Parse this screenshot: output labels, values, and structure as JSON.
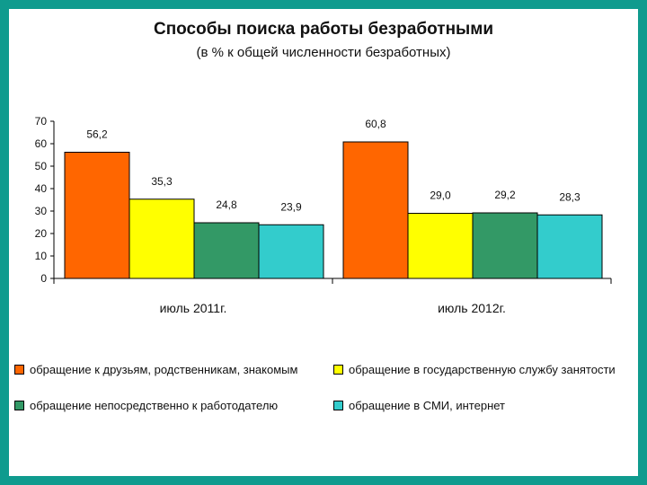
{
  "chart_data": {
    "type": "bar",
    "title": "Способы поиска работы безработными",
    "subtitle": "(в % к общей численности безработных)",
    "categories": [
      "июль 2011г.",
      "июль 2012г."
    ],
    "ylim": [
      0,
      70
    ],
    "yticks": [
      0,
      10,
      20,
      30,
      40,
      50,
      60,
      70
    ],
    "grid": false,
    "legend_position": "bottom",
    "series": [
      {
        "name": "обращение к друзьям, родственникам, знакомым",
        "color": "#ff6600",
        "values": [
          56.2,
          60.8
        ],
        "labels": [
          "56,2",
          "60,8"
        ]
      },
      {
        "name": "обращение в государственную службу занятости",
        "color": "#ffff00",
        "values": [
          35.3,
          29.0
        ],
        "labels": [
          "35,3",
          "29,0"
        ]
      },
      {
        "name": "обращение непосредственно к работодателю",
        "color": "#339966",
        "values": [
          24.8,
          29.2
        ],
        "labels": [
          "24,8",
          "29,2"
        ]
      },
      {
        "name": "обращение в СМИ, интернет",
        "color": "#33cccc",
        "values": [
          23.9,
          28.3
        ],
        "labels": [
          "23,9",
          "28,3"
        ]
      }
    ]
  }
}
